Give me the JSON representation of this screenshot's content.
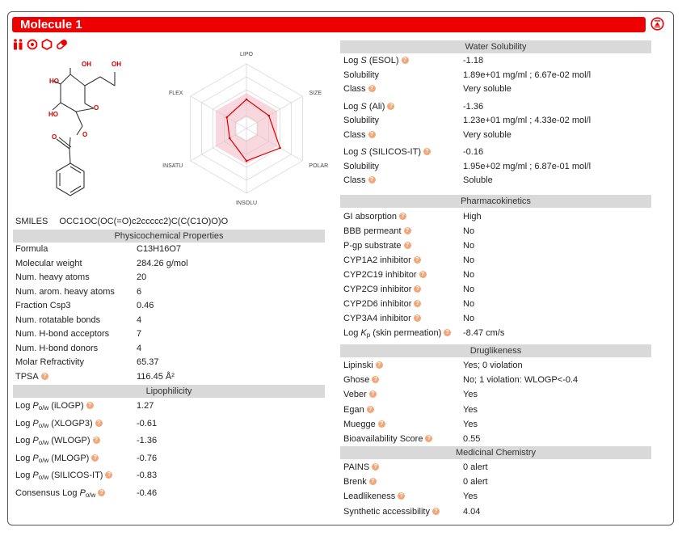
{
  "header": {
    "title": "Molecule 1"
  },
  "toolbar": {
    "icons": [
      "children-icon",
      "target-icon",
      "hexagon-icon",
      "pill-icon"
    ]
  },
  "radar": {
    "axes": [
      "LIPO",
      "SIZE",
      "POLAR",
      "INSOLU",
      "INSATU",
      "FLEX"
    ],
    "values": [
      0.45,
      0.4,
      0.6,
      0.5,
      0.3,
      0.35
    ]
  },
  "molecule": {
    "atoms": {
      "oh1": "OH",
      "oh2": "OH",
      "ho1": "HO",
      "ho2": "HO",
      "o_ring": "O",
      "o_link": "O",
      "o_carbonyl": "O"
    }
  },
  "smiles": {
    "label": "SMILES",
    "value": "OCC1OC(OC(=O)c2ccccc2)C(C(C1O)O)O"
  },
  "physchem": {
    "header": "Physicochemical Properties",
    "rows": [
      {
        "k": "Formula",
        "v": "C13H16O7"
      },
      {
        "k": "Molecular weight",
        "v": "284.26 g/mol"
      },
      {
        "k": "Num. heavy atoms",
        "v": "20"
      },
      {
        "k": "Num. arom. heavy atoms",
        "v": "6"
      },
      {
        "k": "Fraction Csp3",
        "v": "0.46"
      },
      {
        "k": "Num. rotatable bonds",
        "v": "4"
      },
      {
        "k": "Num. H-bond acceptors",
        "v": "7"
      },
      {
        "k": "Num. H-bond donors",
        "v": "4"
      },
      {
        "k": "Molar Refractivity",
        "v": "65.37"
      },
      {
        "k": "TPSA",
        "v": "116.45 Å²"
      }
    ]
  },
  "lipo": {
    "header": "Lipophilicity",
    "log": "Log",
    "p": "P",
    "sub": "o/w",
    "consensus": "Consensus Log",
    "rows": [
      {
        "method": "(iLOGP)",
        "v": "1.27"
      },
      {
        "method": "(XLOGP3)",
        "v": "-0.61"
      },
      {
        "method": "(WLOGP)",
        "v": "-1.36"
      },
      {
        "method": "(MLOGP)",
        "v": "-0.76"
      },
      {
        "method": "(SILICOS-IT)",
        "v": "-0.83"
      }
    ],
    "consensus_v": "-0.46"
  },
  "water": {
    "header": "Water Solubility",
    "log": "Log",
    "s": "S",
    "blocks": [
      {
        "method": "(ESOL)",
        "logs": "-1.18",
        "sol_label": "Solubility",
        "sol": "1.89e+01 mg/ml ; 6.67e-02 mol/l",
        "class_label": "Class",
        "cls": "Very soluble"
      },
      {
        "method": "(Ali)",
        "logs": "-1.36",
        "sol_label": "Solubility",
        "sol": "1.23e+01 mg/ml ; 4.33e-02 mol/l",
        "class_label": "Class",
        "cls": "Very soluble"
      },
      {
        "method": "(SILICOS-IT)",
        "logs": "-0.16",
        "sol_label": "Solubility",
        "sol": "1.95e+02 mg/ml ; 6.87e-01 mol/l",
        "class_label": "Class",
        "cls": "Soluble"
      }
    ]
  },
  "pk": {
    "header": "Pharmacokinetics",
    "rows": [
      {
        "k": "GI absorption",
        "v": "High"
      },
      {
        "k": "BBB permeant",
        "v": "No"
      },
      {
        "k": "P-gp substrate",
        "v": "No"
      },
      {
        "k": "CYP1A2 inhibitor",
        "v": "No"
      },
      {
        "k": "CYP2C19 inhibitor",
        "v": "No"
      },
      {
        "k": "CYP2C9 inhibitor",
        "v": "No"
      },
      {
        "k": "CYP2D6 inhibitor",
        "v": "No"
      },
      {
        "k": "CYP3A4 inhibitor",
        "v": "No"
      }
    ],
    "logkp_log": "Log",
    "logkp_k": "K",
    "logkp_sub": "p",
    "logkp_label": "(skin permeation)",
    "logkp_v": "-8.47 cm/s"
  },
  "drug": {
    "header": "Druglikeness",
    "rows": [
      {
        "k": "Lipinski",
        "v": "Yes; 0 violation"
      },
      {
        "k": "Ghose",
        "v": "No; 1 violation: WLOGP<-0.4"
      },
      {
        "k": "Veber",
        "v": "Yes"
      },
      {
        "k": "Egan",
        "v": "Yes"
      },
      {
        "k": "Muegge",
        "v": "Yes"
      },
      {
        "k": "Bioavailability Score",
        "v": "0.55"
      }
    ]
  },
  "medchem": {
    "header": "Medicinal Chemistry",
    "rows": [
      {
        "k": "PAINS",
        "v": "0 alert"
      },
      {
        "k": "Brenk",
        "v": "0 alert"
      },
      {
        "k": "Leadlikeness",
        "v": "Yes"
      },
      {
        "k": "Synthetic accessibility",
        "v": "4.04"
      }
    ]
  },
  "colors": {
    "accent": "#ee0000",
    "section": "#d9d9d9",
    "info": "#f2a779"
  }
}
